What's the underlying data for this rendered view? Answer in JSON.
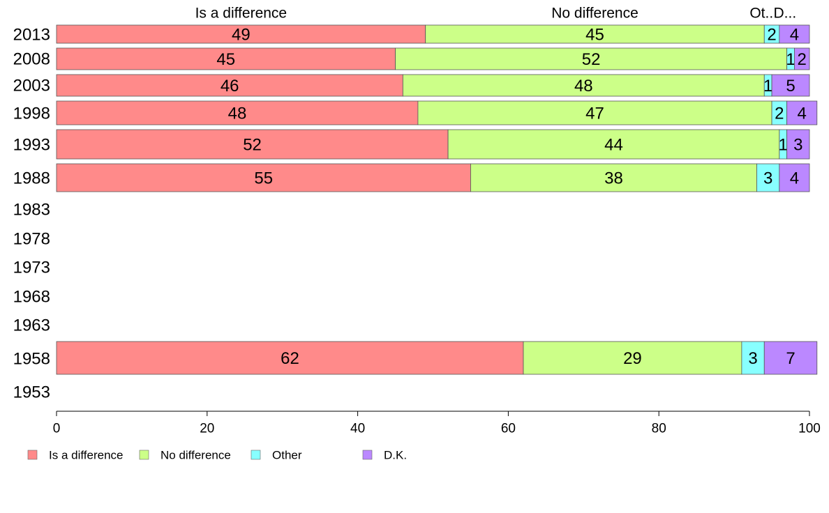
{
  "chart_data": {
    "type": "bar",
    "orientation": "horizontal",
    "stacked": true,
    "categories": [
      "2013",
      "2008",
      "2003",
      "1998",
      "1993",
      "1988",
      "1983",
      "1978",
      "1973",
      "1968",
      "1963",
      "1958",
      "1953"
    ],
    "series": [
      {
        "name": "Is a difference",
        "color": "#ff8a8a",
        "values": [
          49,
          45,
          46,
          48,
          52,
          55,
          null,
          null,
          null,
          null,
          null,
          62,
          null
        ]
      },
      {
        "name": "No difference",
        "color": "#ccff88",
        "values": [
          45,
          52,
          48,
          47,
          44,
          38,
          null,
          null,
          null,
          null,
          null,
          29,
          null
        ]
      },
      {
        "name": "Other",
        "color": "#88ffff",
        "values": [
          2,
          1,
          1,
          2,
          1,
          3,
          null,
          null,
          null,
          null,
          null,
          3,
          null
        ]
      },
      {
        "name": "D.K.",
        "color": "#bb88ff",
        "values": [
          4,
          2,
          5,
          4,
          3,
          4,
          null,
          null,
          null,
          null,
          null,
          7,
          null
        ]
      }
    ],
    "top_labels": [
      "Is a difference",
      "No difference",
      "Ot..",
      "D..."
    ],
    "xlim": [
      0,
      100
    ],
    "xticks": [
      0,
      20,
      40,
      60,
      80,
      100
    ],
    "legend_position": "bottom-left",
    "grid": false,
    "title": "",
    "xlabel": "",
    "ylabel": ""
  }
}
